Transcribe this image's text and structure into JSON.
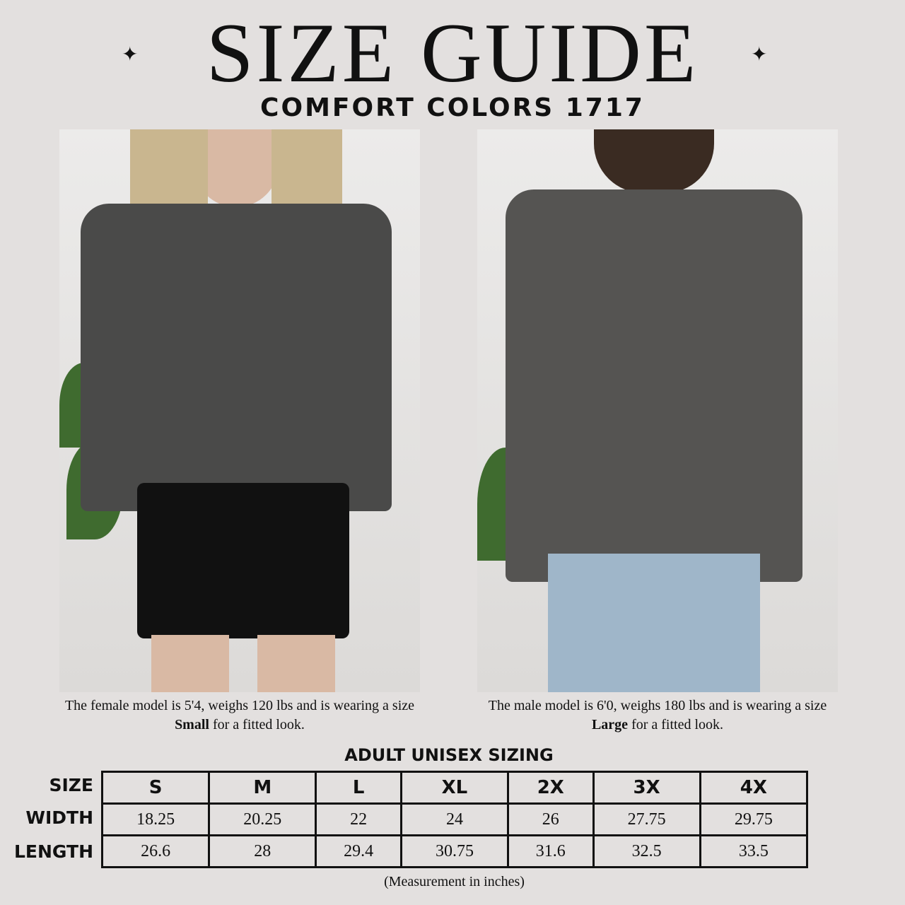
{
  "header": {
    "title": "SIZE GUIDE",
    "subtitle": "COMFORT COLORS 1717",
    "sparkle_icon": "✦"
  },
  "models": [
    {
      "caption_pre": "The female model is 5'4, weighs 120 lbs and is wearing a size ",
      "size": "Small",
      "caption_post": " for a fitted look."
    },
    {
      "caption_pre": "The male model is 6'0, weighs 180 lbs and is wearing a size ",
      "size": "Large",
      "caption_post": " for a fitted look."
    }
  ],
  "table": {
    "title": "ADULT UNISEX SIZING",
    "row_labels": [
      "SIZE",
      "WIDTH",
      "LENGTH"
    ],
    "sizes": [
      "S",
      "M",
      "L",
      "XL",
      "2X",
      "3X",
      "4X"
    ],
    "width": [
      "18.25",
      "20.25",
      "22",
      "24",
      "26",
      "27.75",
      "29.75"
    ],
    "length": [
      "26.6",
      "28",
      "29.4",
      "30.75",
      "31.6",
      "32.5",
      "33.5"
    ],
    "note": "(Measurement in inches)"
  }
}
